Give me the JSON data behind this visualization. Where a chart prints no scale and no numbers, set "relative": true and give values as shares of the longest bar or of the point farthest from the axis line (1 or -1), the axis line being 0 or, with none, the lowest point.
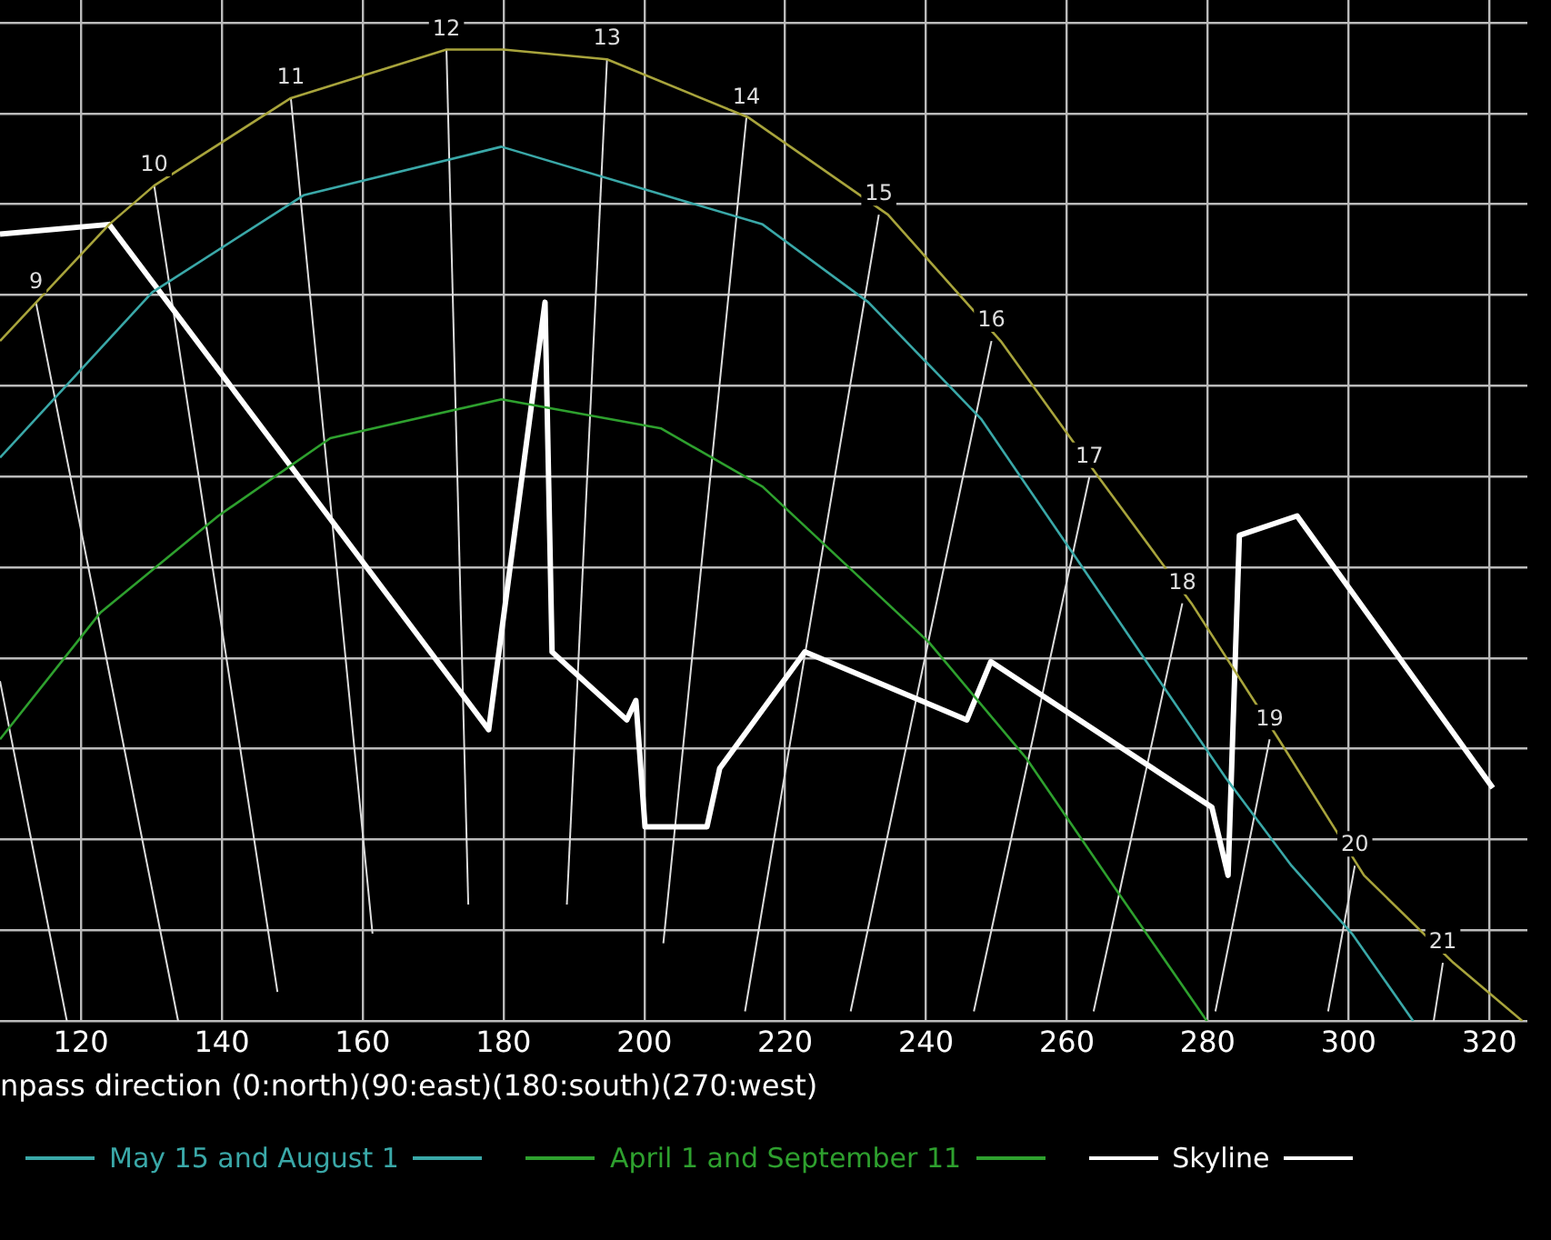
{
  "chart_data": {
    "type": "line",
    "relative": true,
    "xlabel": "npass direction (0:north)(90:east)(180:south)(270:west)",
    "xlim": [
      108.5,
      325.4
    ],
    "xticks": [
      120,
      140,
      160,
      180,
      200,
      220,
      240,
      260,
      280,
      300,
      320
    ],
    "grid": true,
    "legend": "bottom",
    "marker": "none",
    "line_style": "solid",
    "series": [
      {
        "color": "#a8a43c",
        "x": [
          108.5,
          124.0,
          130.4,
          149.8,
          171.9,
          180,
          194.7,
          214.8,
          234.6,
          250.6,
          264.5,
          277.7,
          290.1,
          302.2,
          314.9,
          324.7
        ],
        "values": [
          0.7,
          0.82,
          0.86,
          0.95,
          1.0,
          1.0,
          0.99,
          0.93,
          0.83,
          0.7,
          0.56,
          0.43,
          0.29,
          0.15,
          0.06,
          0.0
        ]
      },
      {
        "name": "May 15 and August 1",
        "color": "#3aa8a8",
        "x": [
          108.5,
          130.1,
          151.6,
          179.7,
          216.8,
          231.8,
          247.8,
          261.0,
          271.3,
          282.6,
          291.9,
          300.5,
          309.2
        ],
        "values": [
          0.58,
          0.75,
          0.85,
          0.9,
          0.82,
          0.74,
          0.62,
          0.48,
          0.37,
          0.25,
          0.16,
          0.09,
          0.0
        ]
      },
      {
        "name": "April 1 and September 11",
        "color": "#2ea02e",
        "x": [
          108.5,
          122.7,
          139.5,
          155.4,
          179.7,
          202.4,
          216.8,
          240.4,
          254.3,
          267.5,
          279.9
        ],
        "values": [
          0.29,
          0.42,
          0.52,
          0.6,
          0.64,
          0.61,
          0.55,
          0.39,
          0.27,
          0.13,
          0.0
        ]
      },
      {
        "name": "Skyline",
        "color": "#ffffff",
        "x": [
          108.5,
          124.0,
          177.9,
          185.9,
          186.9,
          197.5,
          198.8,
          200.1,
          208.9,
          210.7,
          222.8,
          245.8,
          249.2,
          280.6,
          282.9,
          284.5,
          292.7,
          320.5
        ],
        "values": [
          0.81,
          0.82,
          0.3,
          0.74,
          0.38,
          0.31,
          0.33,
          0.2,
          0.2,
          0.26,
          0.38,
          0.31,
          0.37,
          0.22,
          0.15,
          0.5,
          0.52,
          0.24
        ]
      },
      {
        "color": "#dddddd",
        "x": [
          108.5,
          118.0
        ],
        "values": [
          0.35,
          0.0
        ]
      },
      {
        "color": "#dddddd",
        "x": [
          113.6,
          133.8
        ],
        "values": [
          0.74,
          0.0
        ]
      },
      {
        "color": "#dddddd",
        "x": [
          130.4,
          147.9
        ],
        "values": [
          0.86,
          0.03
        ]
      },
      {
        "color": "#dddddd",
        "x": [
          149.8,
          161.4
        ],
        "values": [
          0.95,
          0.09
        ]
      },
      {
        "color": "#dddddd",
        "x": [
          171.9,
          175.0
        ],
        "values": [
          1.0,
          0.12
        ]
      },
      {
        "color": "#dddddd",
        "x": [
          194.7,
          189.0
        ],
        "values": [
          0.99,
          0.12
        ]
      },
      {
        "color": "#dddddd",
        "x": [
          214.5,
          202.7
        ],
        "values": [
          0.93,
          0.08
        ]
      },
      {
        "color": "#dddddd",
        "x": [
          233.3,
          214.3
        ],
        "values": [
          0.83,
          0.01
        ]
      },
      {
        "color": "#dddddd",
        "x": [
          249.3,
          229.3
        ],
        "values": [
          0.7,
          0.01
        ]
      },
      {
        "color": "#dddddd",
        "x": [
          263.2,
          246.8
        ],
        "values": [
          0.56,
          0.01
        ]
      },
      {
        "color": "#dddddd",
        "x": [
          276.4,
          263.8
        ],
        "values": [
          0.43,
          0.01
        ]
      },
      {
        "color": "#dddddd",
        "x": [
          288.8,
          281.1
        ],
        "values": [
          0.29,
          0.01
        ]
      },
      {
        "color": "#dddddd",
        "x": [
          300.9,
          297.1
        ],
        "values": [
          0.16,
          0.01
        ]
      },
      {
        "color": "#dddddd",
        "x": [
          313.4,
          312.1
        ],
        "values": [
          0.06,
          0.0
        ]
      }
    ],
    "annotations": [
      {
        "text": "9",
        "x": 113.6,
        "y": 0.74
      },
      {
        "text": "10",
        "x": 130.4,
        "y": 0.86
      },
      {
        "text": "11",
        "x": 149.8,
        "y": 0.95
      },
      {
        "text": "12",
        "x": 171.9,
        "y": 1.0
      },
      {
        "text": "13",
        "x": 194.7,
        "y": 0.99
      },
      {
        "text": "14",
        "x": 214.5,
        "y": 0.93
      },
      {
        "text": "15",
        "x": 233.3,
        "y": 0.83
      },
      {
        "text": "16",
        "x": 249.3,
        "y": 0.7
      },
      {
        "text": "17",
        "x": 263.2,
        "y": 0.56
      },
      {
        "text": "18",
        "x": 276.4,
        "y": 0.43
      },
      {
        "text": "19",
        "x": 288.8,
        "y": 0.29
      },
      {
        "text": "20",
        "x": 300.9,
        "y": 0.16
      },
      {
        "text": "21",
        "x": 313.4,
        "y": 0.06
      }
    ]
  }
}
